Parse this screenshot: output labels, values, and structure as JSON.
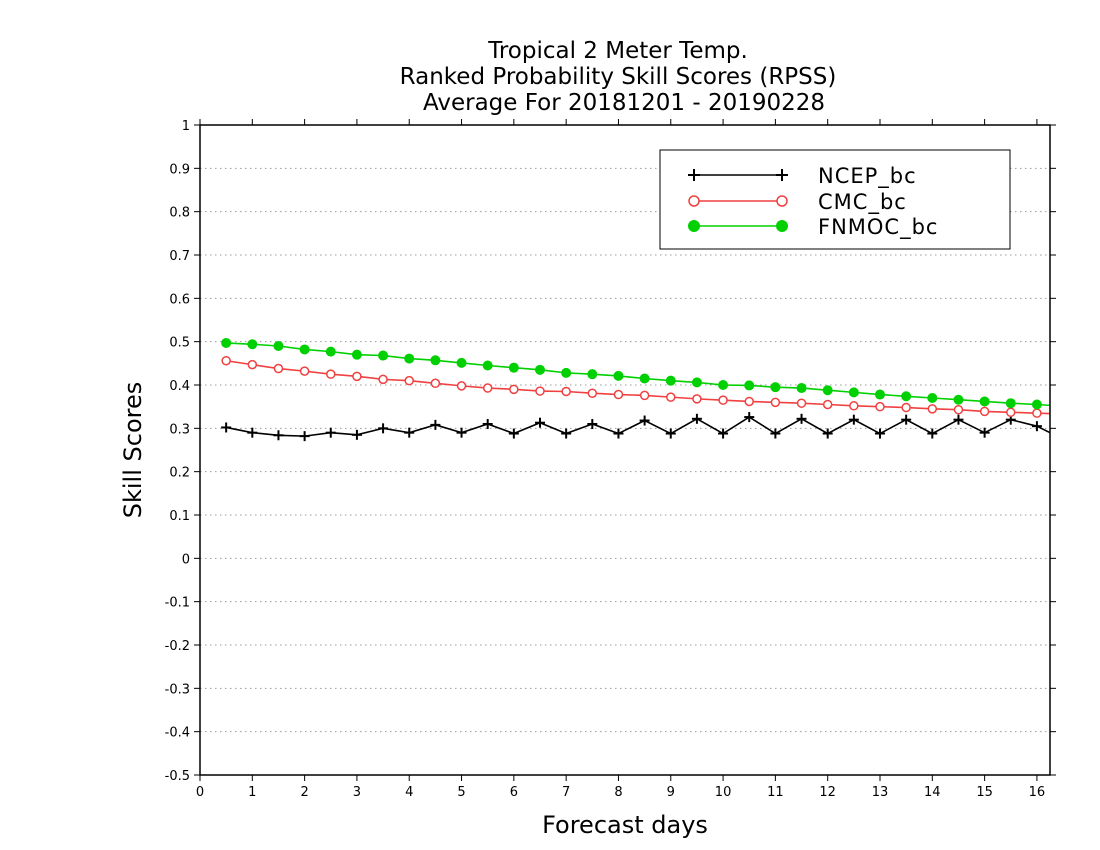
{
  "chart_data": {
    "type": "line",
    "title": [
      "Tropical 2 Meter Temp.",
      "Ranked Probability Skill Scores (RPSS)",
      "Average For 20181201 - 20190228"
    ],
    "xlabel": "Forecast days",
    "ylabel": "Skill Scores",
    "xlim": [
      0,
      16.25
    ],
    "ylim": [
      -0.5,
      1
    ],
    "xticks": [
      0,
      1,
      2,
      3,
      4,
      5,
      6,
      7,
      8,
      9,
      10,
      11,
      12,
      13,
      14,
      15,
      16
    ],
    "xtick_labels": [
      "0",
      "1",
      "2",
      "3",
      "4",
      "5",
      "6",
      "7",
      "8",
      "9",
      "10",
      "11",
      "12",
      "13",
      "14",
      "15",
      "16"
    ],
    "yticks": [
      -0.5,
      -0.4,
      -0.3,
      -0.2,
      -0.1,
      0,
      0.1,
      0.2,
      0.3,
      0.4,
      0.5,
      0.6,
      0.7,
      0.8,
      0.9,
      1
    ],
    "ytick_labels": [
      "-0.5",
      "-0.4",
      "-0.3",
      "-0.2",
      "-0.1",
      "0",
      "0.1",
      "0.2",
      "0.3",
      "0.4",
      "0.5",
      "0.6",
      "0.7",
      "0.8",
      "0.9",
      "1"
    ],
    "grid": "horizontal dotted",
    "legend_position": "top-right",
    "x": [
      0.5,
      1,
      1.5,
      2,
      2.5,
      3,
      3.5,
      4,
      4.5,
      5,
      5.5,
      6,
      6.5,
      7,
      7.5,
      8,
      8.5,
      9,
      9.5,
      10,
      10.5,
      11,
      11.5,
      12,
      12.5,
      13,
      13.5,
      14,
      14.5,
      15,
      15.5,
      16,
      16.25
    ],
    "series": [
      {
        "name": "NCEP_bc",
        "color": "#000000",
        "marker": "plus",
        "values": [
          0.302,
          0.29,
          0.284,
          0.282,
          0.29,
          0.285,
          0.3,
          0.29,
          0.308,
          0.29,
          0.31,
          0.288,
          0.313,
          0.288,
          0.31,
          0.288,
          0.318,
          0.288,
          0.322,
          0.288,
          0.326,
          0.288,
          0.322,
          0.288,
          0.32,
          0.288,
          0.32,
          0.288,
          0.32,
          0.29,
          0.32,
          0.305,
          0.29
        ]
      },
      {
        "name": "CMC_bc",
        "color": "#f04040",
        "marker": "open-circle",
        "values": [
          0.456,
          0.447,
          0.438,
          0.432,
          0.425,
          0.42,
          0.413,
          0.41,
          0.404,
          0.398,
          0.393,
          0.39,
          0.386,
          0.385,
          0.381,
          0.378,
          0.376,
          0.372,
          0.368,
          0.365,
          0.362,
          0.36,
          0.358,
          0.355,
          0.352,
          0.35,
          0.348,
          0.345,
          0.343,
          0.339,
          0.337,
          0.335,
          0.334
        ]
      },
      {
        "name": "FNMOC_bc",
        "color": "#00d000",
        "marker": "filled-circle",
        "values": [
          0.497,
          0.494,
          0.49,
          0.482,
          0.477,
          0.47,
          0.468,
          0.461,
          0.457,
          0.451,
          0.445,
          0.44,
          0.435,
          0.428,
          0.425,
          0.421,
          0.415,
          0.41,
          0.406,
          0.4,
          0.399,
          0.395,
          0.393,
          0.388,
          0.383,
          0.378,
          0.374,
          0.37,
          0.366,
          0.362,
          0.358,
          0.355,
          0.353
        ]
      }
    ]
  }
}
